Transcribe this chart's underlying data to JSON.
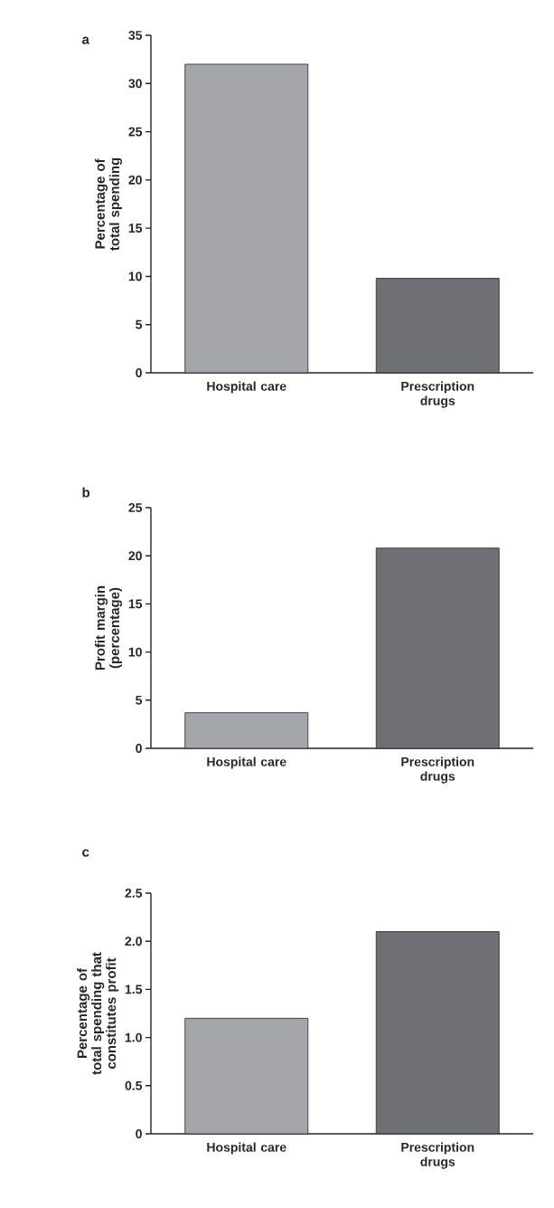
{
  "chart_data": [
    {
      "type": "bar",
      "title": "a",
      "ylabel": "Percentage of total spending",
      "categories": [
        "Hospital care",
        "Prescription drugs"
      ],
      "values": [
        32,
        9.8
      ],
      "colors": [
        "#a4a5a9",
        "#6f7074"
      ],
      "ylim": [
        0,
        35
      ],
      "yticks": [
        0,
        5,
        10,
        15,
        20,
        25,
        30,
        35
      ]
    },
    {
      "type": "bar",
      "title": "b",
      "ylabel": "Profit margin (percentage)",
      "categories": [
        "Hospital care",
        "Prescription drugs"
      ],
      "values": [
        3.7,
        20.8
      ],
      "colors": [
        "#a4a5a9",
        "#6f7074"
      ],
      "ylim": [
        0,
        25
      ],
      "yticks": [
        0,
        5,
        10,
        15,
        20,
        25
      ]
    },
    {
      "type": "bar",
      "title": "c",
      "ylabel": "Percentage of total spending that constitutes profit",
      "categories": [
        "Hospital care",
        "Prescription drugs"
      ],
      "values": [
        1.2,
        2.1
      ],
      "colors": [
        "#a4a5a9",
        "#6f7074"
      ],
      "ylim": [
        0,
        2.5
      ],
      "yticks": [
        0,
        {
          "value": 0.5,
          "label": "0.5"
        },
        {
          "value": 1,
          "label": "1.0"
        },
        {
          "value": 1.5,
          "label": "1.5"
        },
        {
          "value": 2,
          "label": "2.0"
        },
        {
          "value": 2.5,
          "label": "2.5"
        }
      ]
    }
  ]
}
